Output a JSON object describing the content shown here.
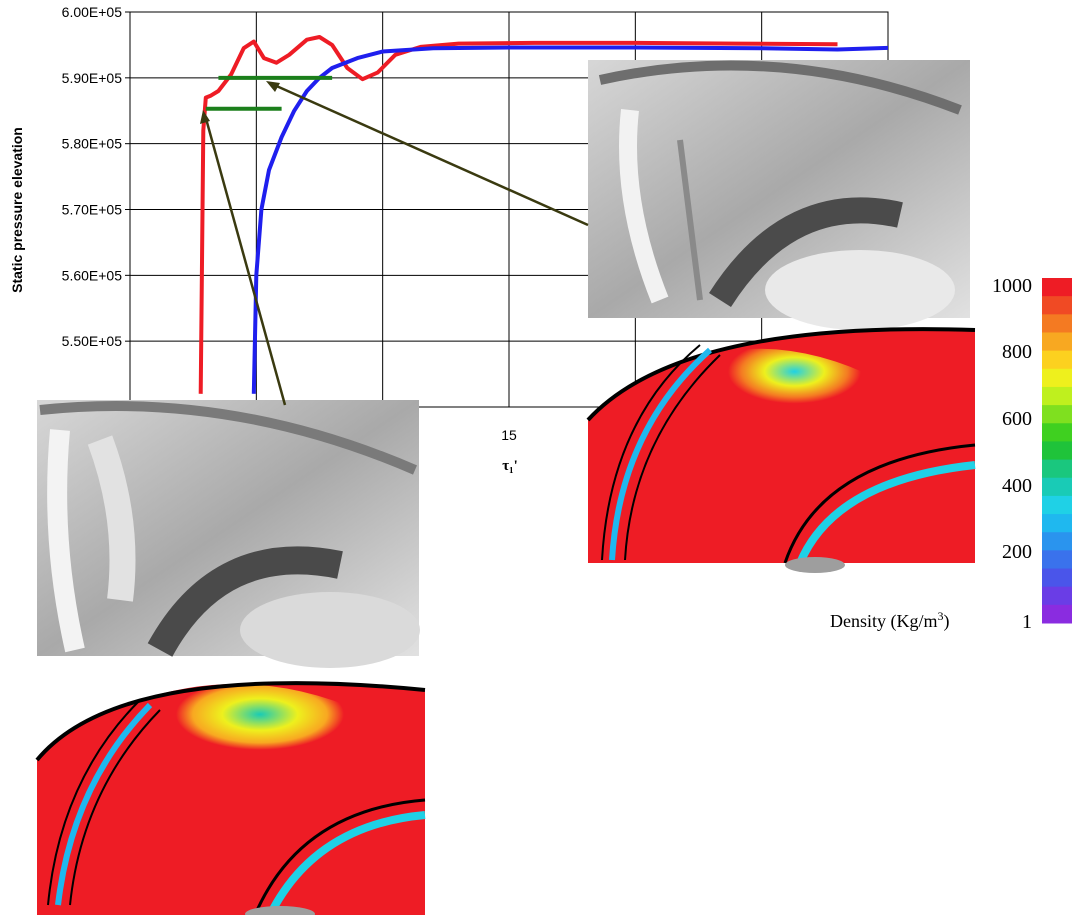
{
  "chart_data": {
    "type": "line",
    "title": "",
    "ylabel": "Static pressure elevation",
    "xlabel": "τ₁'",
    "x_ticks_visible": [
      {
        "value": 15,
        "label": "15"
      }
    ],
    "y_ticks": [
      {
        "value": 600000,
        "label": "6.00E+05"
      },
      {
        "value": 590000,
        "label": "5.90E+05"
      },
      {
        "value": 580000,
        "label": "5.80E+05"
      },
      {
        "value": 570000,
        "label": "5.70E+05"
      },
      {
        "value": 560000,
        "label": "5.60E+05"
      },
      {
        "value": 550000,
        "label": "5.50E+05"
      }
    ],
    "xlim": [
      0,
      30
    ],
    "ylim": [
      540000,
      600000
    ],
    "grid": true,
    "series": [
      {
        "color": "#ee1c25",
        "x": [
          2.8,
          2.9,
          3.0,
          3.2,
          3.5,
          4.0,
          4.5,
          4.9,
          5.3,
          5.8,
          6.3,
          7.0,
          7.5,
          8.0,
          8.6,
          9.2,
          9.8,
          10.5,
          11.5,
          13,
          16,
          20,
          24,
          28
        ],
        "y": [
          542000,
          582000,
          587000,
          587300,
          588000,
          590500,
          594500,
          595500,
          593000,
          592300,
          593500,
          595800,
          596200,
          595000,
          591500,
          589800,
          590800,
          593500,
          594700,
          595200,
          595300,
          595300,
          595200,
          595100
        ]
      },
      {
        "color": "#1f1fee",
        "x": [
          4.9,
          5.0,
          5.2,
          5.5,
          6.0,
          6.5,
          7.0,
          7.5,
          8.0,
          9.0,
          10.0,
          12.0,
          15,
          20,
          25,
          28,
          32
        ],
        "y": [
          542000,
          560000,
          570000,
          576000,
          581000,
          585000,
          588000,
          590000,
          591500,
          593000,
          594000,
          594500,
          594600,
          594600,
          594500,
          594300,
          594800
        ]
      }
    ],
    "annotations": [
      {
        "color": "#1b7f1b",
        "x1": 3.5,
        "x2": 8.0,
        "y": 590000
      },
      {
        "color": "#1b7f1b",
        "x1": 3.0,
        "x2": 6.0,
        "y": 585300
      }
    ],
    "colorbar": {
      "title": "Density (Kg/m",
      "title_sup": "3",
      "title_end": ")",
      "ticks": [
        "1000",
        "800",
        "600",
        "400",
        "200",
        "1"
      ],
      "colors": [
        "#ee1c25",
        "#f04a24",
        "#f47a22",
        "#f8a821",
        "#fcd11f",
        "#eef01d",
        "#bff01e",
        "#7fe01f",
        "#3fd020",
        "#1fc33a",
        "#1ac77e",
        "#19cbb6",
        "#1fd1e6",
        "#1fb8ef",
        "#2a94ee",
        "#3a72ec",
        "#4a55ea",
        "#6a3de6",
        "#8a2ce0"
      ]
    }
  }
}
